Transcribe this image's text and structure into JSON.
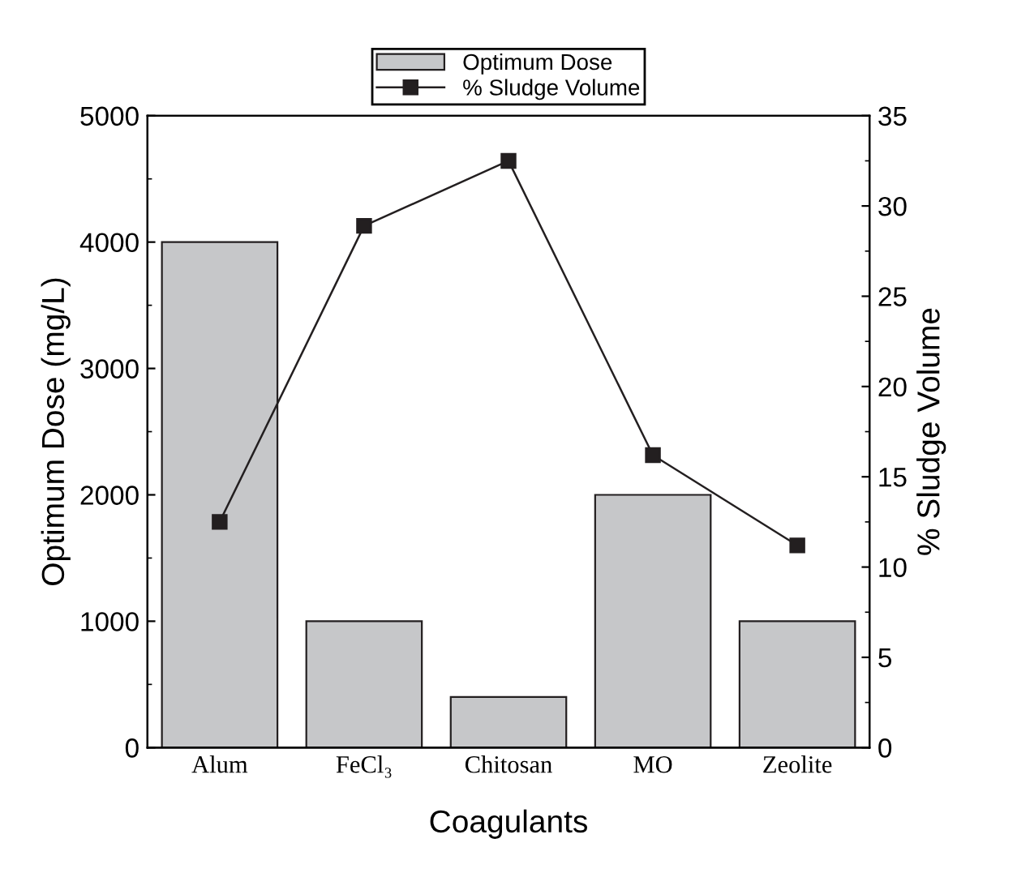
{
  "chart_data": {
    "type": "bar",
    "categories": [
      "Alum",
      "FeCl₃",
      "Chitosan",
      "MO",
      "Zeolite"
    ],
    "xlabel": "Coagulants",
    "ylabel": "Optimum Dose (mg/L)",
    "y2label": "% Sludge Volume",
    "series": [
      {
        "name": "Optimum Dose",
        "color": "#c6c7c9",
        "values": [
          4000,
          1000,
          400,
          2000,
          1000
        ]
      },
      {
        "name": "% Sludge Volume",
        "type": "line",
        "axis": "y2",
        "color": "#231f20",
        "marker": "square",
        "values": [
          12.5,
          28.9,
          32.5,
          16.2,
          11.2
        ]
      }
    ],
    "ylim": [
      0,
      5000
    ],
    "yticks": [
      0,
      1000,
      2000,
      3000,
      4000,
      5000
    ],
    "y2lim": [
      0,
      35
    ],
    "y2ticks": [
      0,
      5,
      10,
      15,
      20,
      25,
      30,
      35
    ],
    "legend": "top",
    "grid": false
  }
}
